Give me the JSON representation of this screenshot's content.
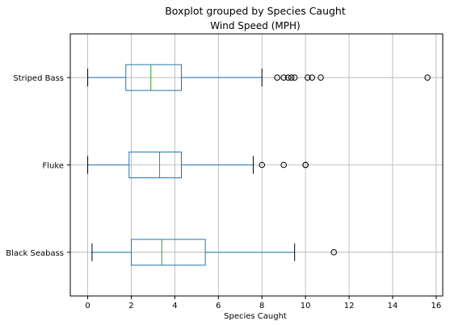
{
  "chart_data": {
    "type": "boxplot",
    "orientation": "horizontal",
    "suptitle": "Boxplot grouped by Species Caught",
    "title": "Wind Speed (MPH)",
    "xlabel": "Species Caught",
    "ylabel": "",
    "xlim": [
      -0.8,
      16.3
    ],
    "xticks": [
      0,
      2,
      4,
      6,
      8,
      10,
      12,
      14,
      16
    ],
    "grid": true,
    "categories": [
      "Black Seabass",
      "Fluke",
      "Striped Bass"
    ],
    "boxes": [
      {
        "category": "Black Seabass",
        "whisker_low": 0.2,
        "q1": 2.0,
        "median": 3.4,
        "q3": 5.4,
        "whisker_high": 9.5,
        "outliers": [
          11.3
        ]
      },
      {
        "category": "Fluke",
        "whisker_low": 0.0,
        "q1": 1.9,
        "median": 3.3,
        "q3": 4.3,
        "whisker_high": 7.6,
        "outliers": [
          8.0,
          9.0,
          10.0,
          10.0
        ]
      },
      {
        "category": "Striped Bass",
        "whisker_low": 0.0,
        "q1": 1.75,
        "median": 2.9,
        "q3": 4.3,
        "whisker_high": 8.0,
        "outliers": [
          8.7,
          9.0,
          9.2,
          9.35,
          9.5,
          10.1,
          10.3,
          10.7,
          15.6
        ]
      }
    ],
    "colors": {
      "box": "#1f77b4",
      "median": "#2ca02c",
      "grid": "#b0b0b0",
      "outlier_edge": "#000000"
    }
  }
}
